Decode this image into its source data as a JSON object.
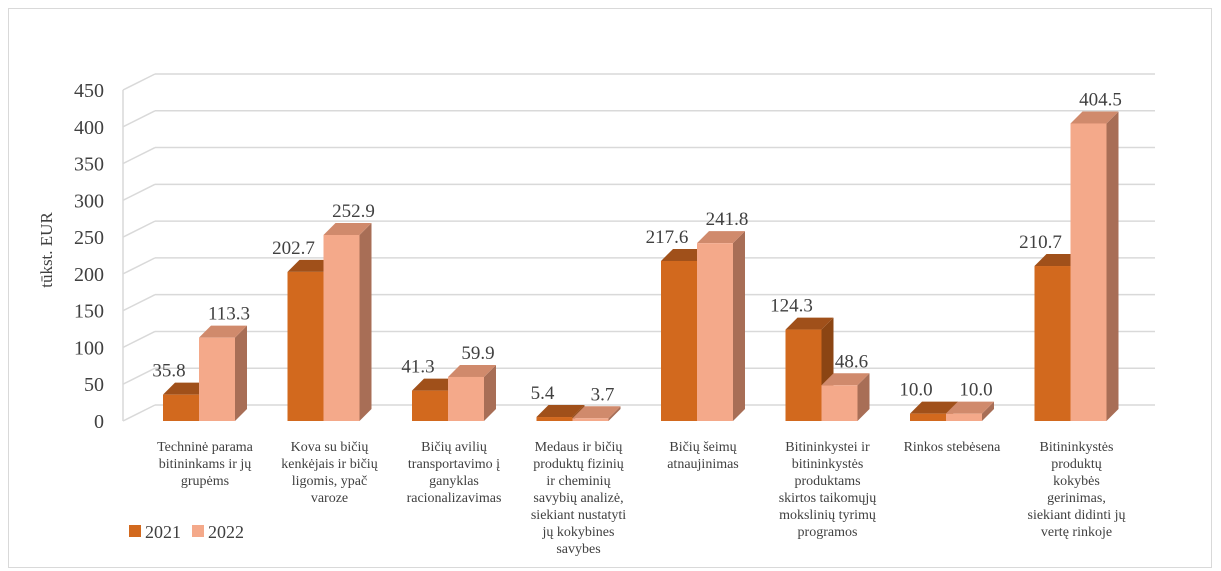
{
  "chart_data": {
    "type": "bar",
    "ylabel": "tūkst. EUR",
    "ylim": [
      0,
      450
    ],
    "yticks": [
      0,
      50,
      100,
      150,
      200,
      250,
      300,
      350,
      400,
      450
    ],
    "grid": true,
    "legend_position": "bottom-left",
    "categories": [
      [
        "Techninė parama",
        "bitininkams ir jų",
        "grupėms"
      ],
      [
        "Kova su bičių",
        "kenkėjais ir bičių",
        "ligomis, ypač",
        "varoze"
      ],
      [
        "Bičių avilių",
        "transportavimo į",
        "ganyklas",
        "racionalizavimas"
      ],
      [
        "Medaus ir bičių",
        "produktų fizinių",
        "ir cheminių",
        "savybių analizė,",
        "siekiant nustatyti",
        "jų kokybines",
        "savybes"
      ],
      [
        "Bičių šeimų",
        "atnaujinimas"
      ],
      [
        "Bitininkystei ir",
        "bitininkystės",
        "produktams",
        "skirtos taikomųjų",
        "mokslinių tyrimų",
        "programos"
      ],
      [
        "Rinkos stebėsena"
      ],
      [
        "Bitininkystės",
        "produktų",
        "kokybės",
        "gerinimas,",
        "siekiant didinti jų",
        "vertę rinkoje"
      ]
    ],
    "series": [
      {
        "name": "2021",
        "values": [
          35.8,
          202.7,
          41.3,
          5.4,
          217.6,
          124.3,
          10.0,
          210.7
        ],
        "labels": [
          "35.8",
          "202.7",
          "41.3",
          "5.4",
          "217.6",
          "124.3",
          "10.0",
          "210.7"
        ],
        "color": "#d2691e",
        "top_color": "#a0501a",
        "side_color": "#8b4513"
      },
      {
        "name": "2022",
        "values": [
          113.3,
          252.9,
          59.9,
          3.7,
          241.8,
          48.6,
          10.0,
          404.5
        ],
        "labels": [
          "113.3",
          "252.9",
          "59.9",
          "3.7",
          "241.8",
          "48.6",
          "10.0",
          "404.5"
        ],
        "color": "#f4a98a",
        "top_color": "#d08a6c",
        "side_color": "#a86e56"
      }
    ]
  }
}
